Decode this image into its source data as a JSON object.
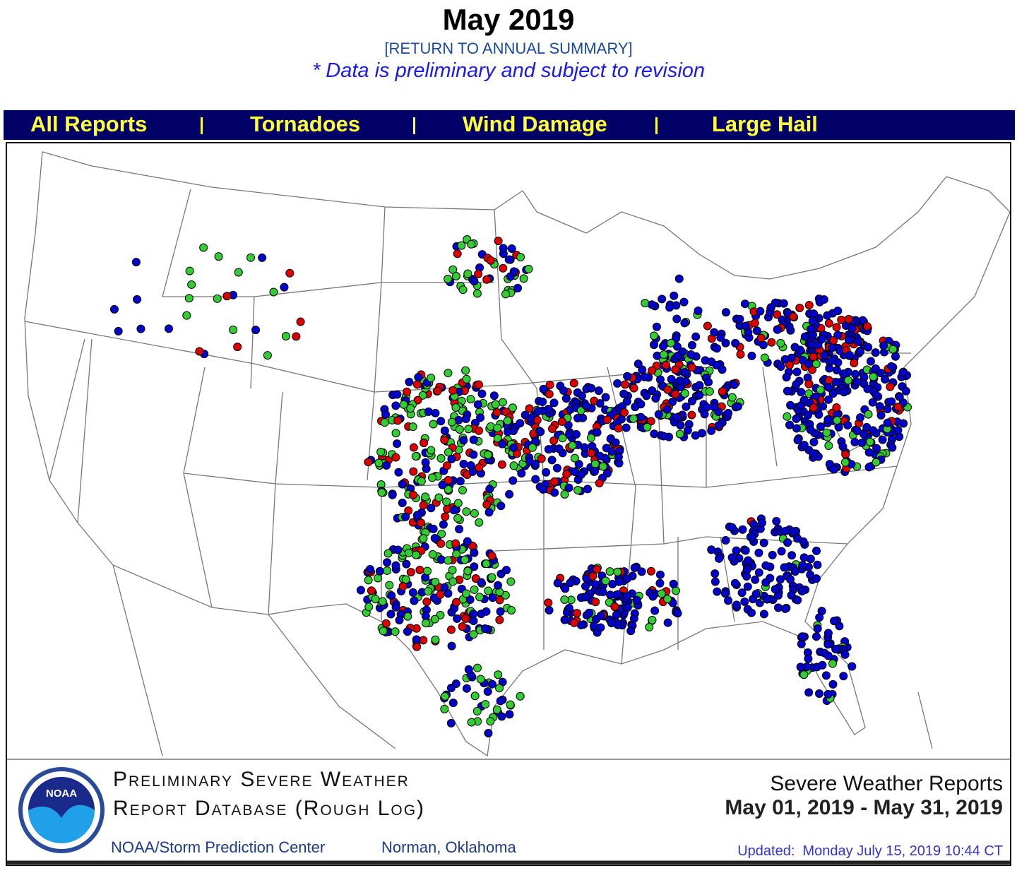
{
  "header": {
    "title": "May 2019",
    "return_link": "[RETURN TO ANNUAL SUMMARY]",
    "note": "* Data is preliminary and subject to revision"
  },
  "nav": {
    "items": [
      "All Reports",
      "Tornadoes",
      "Wind Damage",
      "Large Hail"
    ]
  },
  "footer": {
    "logo_text": "NOAA",
    "database_title": [
      "Preliminary Severe Weather",
      "Report Database (Rough Log)"
    ],
    "center": "NOAA/Storm Prediction Center",
    "location": "Norman, Oklahoma",
    "report_title": "Severe Weather Reports",
    "date_range": "May 01, 2019 - May 31, 2019",
    "updated": "Updated:  Monday July 15, 2019 10:44 CT"
  }
}
